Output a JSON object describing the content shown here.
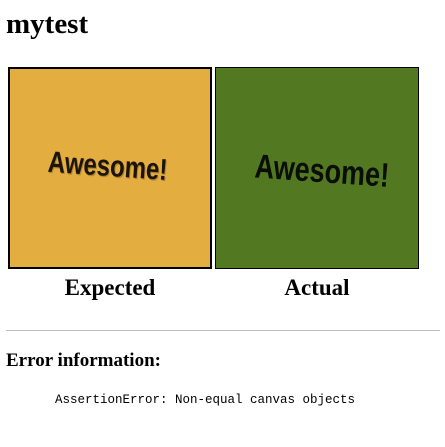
{
  "page": {
    "title": "mytest"
  },
  "comparison": {
    "expected": {
      "canvas_text": "Awesome!",
      "canvas_color": "#e4ad40",
      "caption": "Expected"
    },
    "actual": {
      "canvas_text": "Awesome!",
      "canvas_color": "#537822",
      "caption": "Actual"
    }
  },
  "error": {
    "heading": "Error information:",
    "message": "AssertionError: Non-equal canvas objects"
  }
}
